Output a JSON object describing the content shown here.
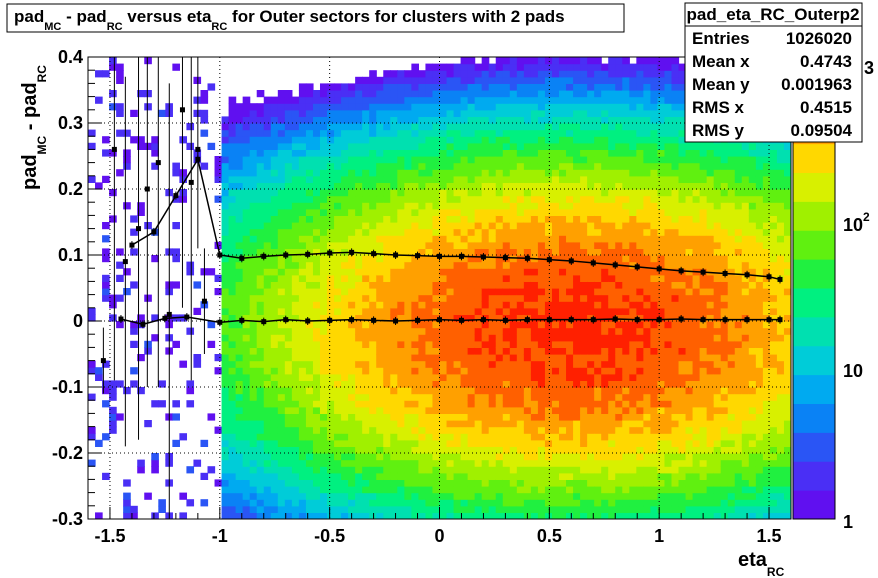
{
  "chart_data": {
    "type": "heatmap",
    "title_parts": {
      "p1": "pad",
      "s1": "MC",
      "p2": " - pad",
      "s2": "RC",
      "p3": " versus eta",
      "s3": "RC",
      "p4": " for Outer sectors for clusters with 2 pads"
    },
    "xlabel": {
      "main": "eta",
      "sub": "RC"
    },
    "ylabel": {
      "main1": "pad",
      "sub1": "MC",
      "main2": " - pad",
      "sub2": "RC"
    },
    "xlim": [
      -1.6,
      1.6
    ],
    "ylim": [
      -0.3,
      0.4
    ],
    "xticks": [
      -1.5,
      -1,
      -0.5,
      0,
      0.5,
      1,
      1.5
    ],
    "xtick_labels": [
      "-1.5",
      "-1",
      "-0.5",
      "0",
      "0.5",
      "1",
      "1.5"
    ],
    "yticks": [
      -0.3,
      -0.2,
      -0.1,
      0,
      0.1,
      0.2,
      0.3,
      0.4
    ],
    "ytick_labels": [
      "-0.3",
      "-0.2",
      "-0.1",
      "0",
      "0.1",
      "0.2",
      "0.3",
      "0.4"
    ],
    "grid": true,
    "z_scale": "log",
    "zlim": [
      1,
      3000
    ],
    "colorbar_ticks": [
      1,
      10,
      100,
      1000
    ],
    "colorbar_labels": {
      "one": "1",
      "ten": "10",
      "hundred_base": "10",
      "hundred_exp": "2",
      "thousand_exp": "3"
    },
    "density_model": {
      "peak_counts": 2200,
      "x_center": 0.6,
      "x_sigma": 0.62,
      "y_center": -0.01,
      "y_sigma": 0.105,
      "x_min_populated": -1.0
    },
    "rms_profile": {
      "name": "RMS profile",
      "x": [
        -1.4,
        -1.3,
        -1.2,
        -1.1,
        -1.0,
        -0.9,
        -0.8,
        -0.7,
        -0.6,
        -0.5,
        -0.4,
        -0.3,
        -0.2,
        -0.1,
        0.0,
        0.1,
        0.2,
        0.3,
        0.4,
        0.5,
        0.6,
        0.7,
        0.8,
        0.9,
        1.0,
        1.1,
        1.2,
        1.3,
        1.4,
        1.5,
        1.55
      ],
      "y": [
        0.115,
        0.135,
        0.19,
        0.245,
        0.1,
        0.095,
        0.098,
        0.1,
        0.101,
        0.103,
        0.104,
        0.102,
        0.1,
        0.099,
        0.098,
        0.098,
        0.097,
        0.096,
        0.095,
        0.093,
        0.091,
        0.088,
        0.085,
        0.082,
        0.079,
        0.076,
        0.074,
        0.072,
        0.07,
        0.067,
        0.063
      ]
    },
    "mean_profile": {
      "name": "Mean profile",
      "x": [
        -1.45,
        -1.35,
        -1.25,
        -1.15,
        -1.0,
        -0.9,
        -0.8,
        -0.7,
        -0.6,
        -0.5,
        -0.4,
        -0.3,
        -0.2,
        -0.1,
        0.0,
        0.1,
        0.2,
        0.3,
        0.4,
        0.5,
        0.6,
        0.7,
        0.8,
        0.9,
        1.0,
        1.1,
        1.2,
        1.3,
        1.4,
        1.5,
        1.55
      ],
      "y": [
        0.003,
        -0.005,
        0.004,
        0.006,
        -0.002,
        0.001,
        -0.001,
        0.002,
        0.0,
        0.001,
        0.002,
        0.001,
        0.0,
        0.001,
        0.002,
        0.001,
        0.002,
        0.001,
        0.002,
        0.002,
        0.002,
        0.002,
        0.003,
        0.002,
        0.002,
        0.003,
        0.002,
        0.002,
        0.002,
        0.002,
        0.002
      ]
    },
    "sparse_error_bars": [
      {
        "x": -1.53,
        "y": -0.06,
        "err": 0.05
      },
      {
        "x": -1.48,
        "y": 0.26,
        "err": 0.35
      },
      {
        "x": -1.43,
        "y": 0.09,
        "err": 0.28
      },
      {
        "x": -1.37,
        "y": 0.14,
        "err": 0.32
      },
      {
        "x": -1.33,
        "y": 0.2,
        "err": 0.3
      },
      {
        "x": -1.28,
        "y": 0.24,
        "err": 0.34
      },
      {
        "x": -1.23,
        "y": 0.01,
        "err": 0.35
      },
      {
        "x": -1.17,
        "y": 0.32,
        "err": 0.3
      },
      {
        "x": -1.13,
        "y": 0.21,
        "err": 0.3
      },
      {
        "x": -1.1,
        "y": 0.26,
        "err": 0.15
      },
      {
        "x": -1.07,
        "y": 0.03,
        "err": 0.08
      }
    ]
  },
  "stats_box": {
    "title": "pad_eta_RC_Outerp2",
    "rows": [
      {
        "label": "Entries",
        "value": "1026020"
      },
      {
        "label": "Mean x",
        "value": "0.4743"
      },
      {
        "label": "Mean y",
        "value": "0.001963"
      },
      {
        "label": "RMS x",
        "value": "0.4515"
      },
      {
        "label": "RMS y",
        "value": "0.09504"
      }
    ]
  }
}
